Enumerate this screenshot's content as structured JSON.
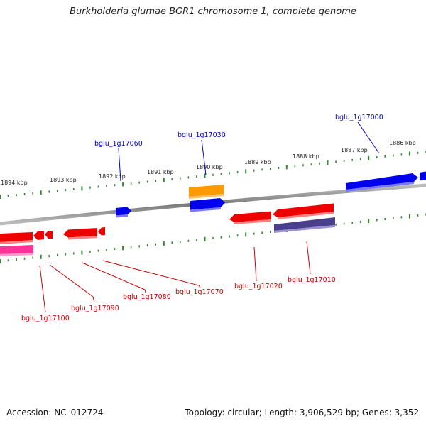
{
  "title": "Burkholderia glumae BGR1 chromosome 1, complete genome",
  "footer": {
    "accession": "Accession: NC_012724",
    "summary": "Topology: circular; Length: 3,906,529 bp; Genes: 3,352"
  },
  "colors": {
    "backbone": "#888888",
    "tick": "#2e8b2e",
    "forward_label": "#0000cc",
    "reverse_label": "#cc0000",
    "gene_red": "#ee0000",
    "gene_blue": "#0000ee",
    "gene_orange": "#ff9900",
    "gene_purple": "#4a3f8c",
    "gene_pink": "#ff3399"
  },
  "scale_labels": [
    "1894 kbp",
    "1893 kbp",
    "1892 kbp",
    "1891 kbp",
    "1890 kbp",
    "1889 kbp",
    "1888 kbp",
    "1887 kbp",
    "1886 kbp"
  ],
  "gene_labels": {
    "forward": [
      "bglu_1g17060",
      "bglu_1g17030",
      "bglu_1g17000"
    ],
    "reverse": [
      "bglu_1g17100",
      "bglu_1g17090",
      "bglu_1g17080",
      "bglu_1g17070",
      "bglu_1g17020",
      "bglu_1g17010"
    ]
  }
}
